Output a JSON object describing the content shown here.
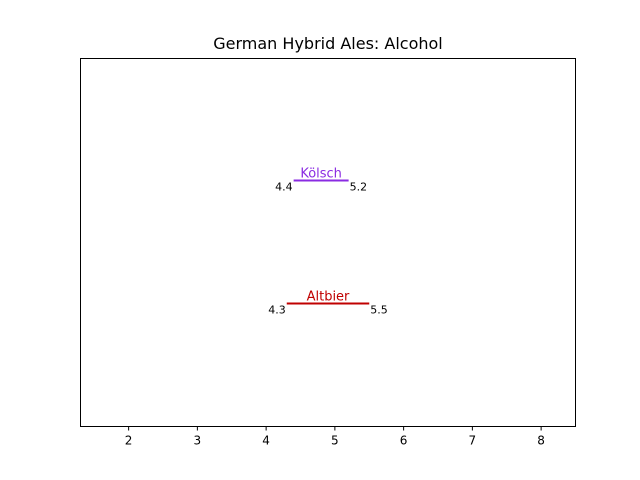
{
  "chart_data": {
    "type": "range",
    "title": "German Hybrid Ales: Alcohol",
    "xlabel": "",
    "ylabel": "",
    "xlim": [
      1.3,
      8.5
    ],
    "x_ticks": [
      2,
      3,
      4,
      5,
      6,
      7,
      8
    ],
    "grid": false,
    "series": [
      {
        "name": "Kölsch",
        "low": 4.4,
        "high": 5.2,
        "low_label": "4.4",
        "high_label": "5.2",
        "color": "#8a2be2"
      },
      {
        "name": "Altbier",
        "low": 4.3,
        "high": 5.5,
        "low_label": "4.3",
        "high_label": "5.5",
        "color": "#c00000"
      }
    ]
  }
}
